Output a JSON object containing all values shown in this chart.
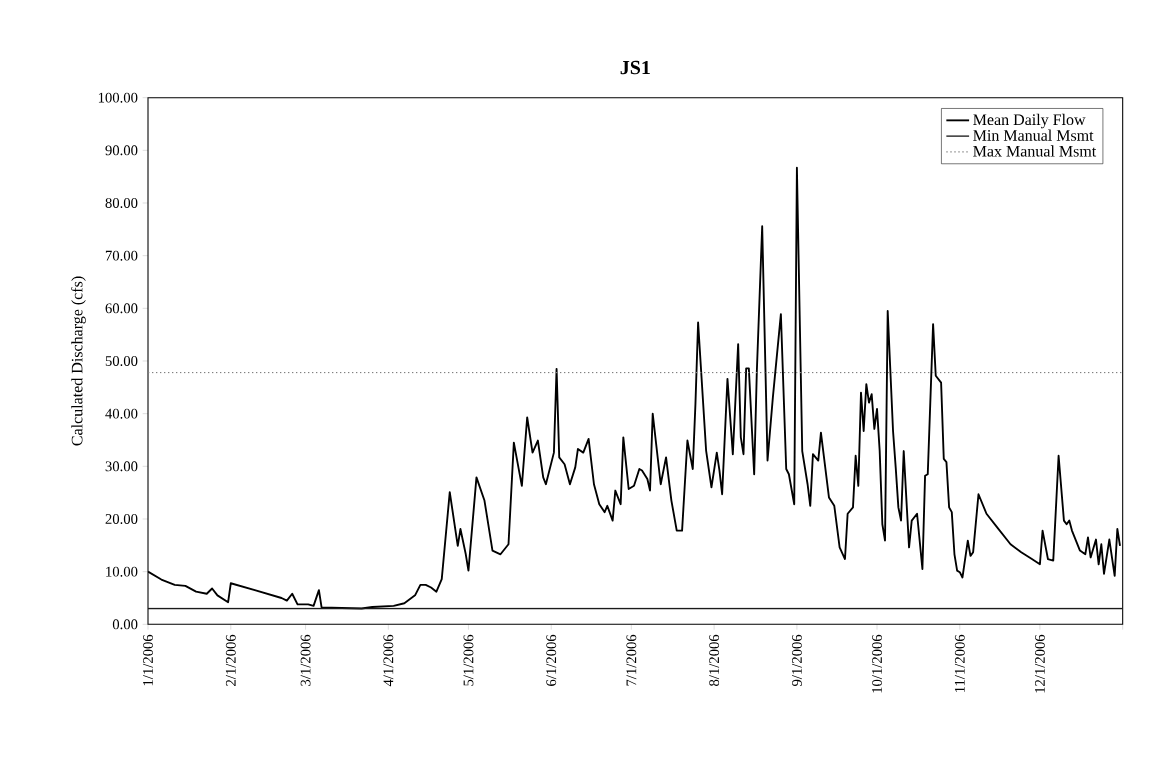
{
  "chart_data": {
    "type": "line",
    "title": "JS1",
    "ylabel": "Calculated Discharge (cfs)",
    "xlim": [
      "2006-01-01",
      "2007-01-01"
    ],
    "xticks": [
      {
        "value": "2006-01-01",
        "label": "1/1/2006"
      },
      {
        "value": "2006-02-01",
        "label": "2/1/2006"
      },
      {
        "value": "2006-03-01",
        "label": "3/1/2006"
      },
      {
        "value": "2006-04-01",
        "label": "4/1/2006"
      },
      {
        "value": "2006-05-01",
        "label": "5/1/2006"
      },
      {
        "value": "2006-06-01",
        "label": "6/1/2006"
      },
      {
        "value": "2006-07-01",
        "label": "7/1/2006"
      },
      {
        "value": "2006-08-01",
        "label": "8/1/2006"
      },
      {
        "value": "2006-09-01",
        "label": "9/1/2006"
      },
      {
        "value": "2006-10-01",
        "label": "10/1/2006"
      },
      {
        "value": "2006-11-01",
        "label": "11/1/2006"
      },
      {
        "value": "2006-12-01",
        "label": "12/1/2006"
      },
      {
        "value": "2007-01-01",
        "label": null
      }
    ],
    "ylim": [
      0,
      100
    ],
    "yticks": [
      {
        "value": 0,
        "label": "0.00"
      },
      {
        "value": 10,
        "label": "10.00"
      },
      {
        "value": 20,
        "label": "20.00"
      },
      {
        "value": 30,
        "label": "30.00"
      },
      {
        "value": 40,
        "label": "40.00"
      },
      {
        "value": 50,
        "label": "50.00"
      },
      {
        "value": 60,
        "label": "60.00"
      },
      {
        "value": 70,
        "label": "70.00"
      },
      {
        "value": 80,
        "label": "80.00"
      },
      {
        "value": 90,
        "label": "90.00"
      },
      {
        "value": 100,
        "label": "100.00"
      }
    ],
    "legend": "top right",
    "marker": "none",
    "series": [
      {
        "name": "Mean Daily Flow",
        "color": "#000000",
        "line_style": "solid",
        "x": [
          "2006-01-01",
          "2006-01-06",
          "2006-01-11",
          "2006-01-15",
          "2006-01-19",
          "2006-01-23",
          "2006-01-25",
          "2006-01-27",
          "2006-01-31",
          "2006-02-01",
          "2006-02-10",
          "2006-02-20",
          "2006-02-22",
          "2006-02-24",
          "2006-02-26",
          "2006-03-02",
          "2006-03-04",
          "2006-03-06",
          "2006-03-07",
          "2006-03-22",
          "2006-03-26",
          "2006-04-03",
          "2006-04-07",
          "2006-04-11",
          "2006-04-13",
          "2006-04-15",
          "2006-04-17",
          "2006-04-19",
          "2006-04-21",
          "2006-04-24",
          "2006-04-27",
          "2006-04-28",
          "2006-04-30",
          "2006-05-01",
          "2006-05-04",
          "2006-05-07",
          "2006-05-10",
          "2006-05-13",
          "2006-05-16",
          "2006-05-18",
          "2006-05-21",
          "2006-05-23",
          "2006-05-25",
          "2006-05-27",
          "2006-05-29",
          "2006-05-30",
          "2006-06-02",
          "2006-06-03",
          "2006-06-04",
          "2006-06-06",
          "2006-06-08",
          "2006-06-10",
          "2006-06-11",
          "2006-06-13",
          "2006-06-15",
          "2006-06-17",
          "2006-06-19",
          "2006-06-21",
          "2006-06-22",
          "2006-06-24",
          "2006-06-25",
          "2006-06-27",
          "2006-06-28",
          "2006-06-30",
          "2006-07-02",
          "2006-07-04",
          "2006-07-05",
          "2006-07-07",
          "2006-07-08",
          "2006-07-09",
          "2006-07-12",
          "2006-07-14",
          "2006-07-16",
          "2006-07-18",
          "2006-07-20",
          "2006-07-22",
          "2006-07-24",
          "2006-07-25",
          "2006-07-26",
          "2006-07-29",
          "2006-07-31",
          "2006-08-02",
          "2006-08-03",
          "2006-08-04",
          "2006-08-06",
          "2006-08-08",
          "2006-08-10",
          "2006-08-11",
          "2006-08-12",
          "2006-08-13",
          "2006-08-14",
          "2006-08-16",
          "2006-08-17",
          "2006-08-19",
          "2006-08-21",
          "2006-08-23",
          "2006-08-26",
          "2006-08-28",
          "2006-08-29",
          "2006-08-31",
          "2006-09-01",
          "2006-09-03",
          "2006-09-05",
          "2006-09-06",
          "2006-09-07",
          "2006-09-09",
          "2006-09-10",
          "2006-09-13",
          "2006-09-15",
          "2006-09-17",
          "2006-09-19",
          "2006-09-20",
          "2006-09-22",
          "2006-09-23",
          "2006-09-24",
          "2006-09-25",
          "2006-09-26",
          "2006-09-27",
          "2006-09-28",
          "2006-09-29",
          "2006-09-30",
          "2006-10-01",
          "2006-10-02",
          "2006-10-03",
          "2006-10-04",
          "2006-10-05",
          "2006-10-07",
          "2006-10-08",
          "2006-10-09",
          "2006-10-10",
          "2006-10-11",
          "2006-10-13",
          "2006-10-14",
          "2006-10-16",
          "2006-10-18",
          "2006-10-19",
          "2006-10-20",
          "2006-10-22",
          "2006-10-23",
          "2006-10-25",
          "2006-10-26",
          "2006-10-27",
          "2006-10-28",
          "2006-10-29",
          "2006-10-30",
          "2006-10-31",
          "2006-11-01",
          "2006-11-02",
          "2006-11-04",
          "2006-11-05",
          "2006-11-06",
          "2006-11-08",
          "2006-11-11",
          "2006-11-15",
          "2006-11-20",
          "2006-11-24",
          "2006-11-28",
          "2006-12-01",
          "2006-12-02",
          "2006-12-04",
          "2006-12-06",
          "2006-12-08",
          "2006-12-10",
          "2006-12-11",
          "2006-12-12",
          "2006-12-13",
          "2006-12-16",
          "2006-12-18",
          "2006-12-19",
          "2006-12-20",
          "2006-12-22",
          "2006-12-23",
          "2006-12-24",
          "2006-12-25",
          "2006-12-27",
          "2006-12-29",
          "2006-12-30",
          "2006-12-31"
        ],
        "values": [
          10.0,
          8.5,
          7.5,
          7.3,
          6.2,
          5.8,
          6.8,
          5.5,
          4.2,
          7.8,
          6.5,
          5.0,
          4.5,
          5.8,
          3.8,
          3.8,
          3.5,
          6.5,
          3.2,
          3.0,
          3.3,
          3.5,
          4.0,
          5.5,
          7.5,
          7.5,
          7.0,
          6.2,
          8.6,
          25.1,
          14.9,
          18.1,
          13.3,
          10.2,
          27.9,
          23.5,
          14.0,
          13.3,
          15.2,
          34.5,
          26.3,
          39.3,
          32.6,
          34.9,
          27.9,
          26.6,
          32.6,
          48.5,
          31.7,
          30.4,
          26.6,
          29.8,
          33.3,
          32.6,
          35.2,
          26.6,
          22.8,
          21.3,
          22.5,
          19.7,
          25.4,
          22.8,
          35.5,
          25.7,
          26.3,
          29.5,
          29.2,
          27.6,
          25.4,
          40.0,
          26.6,
          31.7,
          23.5,
          17.8,
          17.8,
          34.9,
          29.5,
          41.8,
          57.3,
          33.0,
          26.0,
          32.6,
          29.2,
          24.7,
          46.6,
          32.3,
          53.2,
          35.5,
          32.3,
          48.6,
          48.6,
          28.5,
          48.1,
          75.6,
          31.1,
          43.1,
          58.9,
          29.5,
          28.5,
          22.8,
          86.7,
          32.9,
          26.6,
          22.5,
          32.3,
          31.1,
          36.4,
          24.1,
          22.5,
          14.6,
          12.4,
          21.0,
          22.2,
          32.0,
          26.3,
          44.0,
          36.7,
          45.6,
          42.1,
          43.7,
          37.1,
          40.9,
          32.9,
          19.0,
          15.9,
          59.5,
          36.7,
          29.8,
          22.2,
          19.7,
          32.9,
          14.6,
          19.7,
          21.0,
          10.5,
          28.2,
          28.5,
          57.0,
          47.2,
          45.9,
          31.4,
          30.8,
          22.2,
          21.3,
          13.3,
          10.2,
          9.9,
          8.9,
          15.9,
          13.0,
          13.7,
          24.7,
          21.0,
          18.4,
          15.2,
          13.7,
          12.4,
          11.4,
          17.8,
          12.4,
          12.1,
          32.0,
          19.7,
          19.0,
          19.7,
          17.8,
          14.0,
          13.3,
          16.5,
          12.7,
          16.1,
          11.4,
          15.2,
          9.6,
          16.1,
          9.2,
          18.1,
          14.9
        ]
      },
      {
        "name": "Min Manual Msmt",
        "color": "#1a1a1a",
        "line_style": "solid",
        "x": [
          "2006-01-01",
          "2007-01-01"
        ],
        "values": [
          3.0,
          3.0
        ]
      },
      {
        "name": "Max Manual Msmt",
        "color": "#808080",
        "line_style": "dotted",
        "x": [
          "2006-01-01",
          "2007-01-01"
        ],
        "values": [
          47.8,
          47.8
        ]
      }
    ]
  }
}
